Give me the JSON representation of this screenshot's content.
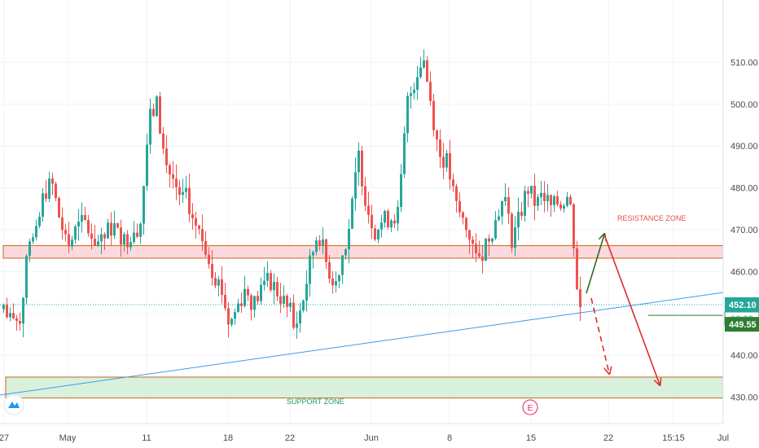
{
  "chart_data": {
    "type": "candlestick",
    "ylim": [
      423,
      520
    ],
    "y_ticks": [
      430,
      440,
      450,
      460,
      470,
      480,
      490,
      500,
      510
    ],
    "y_tick_labels": [
      "430.00",
      "440.00",
      "450.00",
      "460.00",
      "470.00",
      "480.00",
      "490.00",
      "500.00",
      "510.00"
    ],
    "x_tick_labels": [
      "27",
      "May",
      "11",
      "18",
      "22",
      "Jun",
      "8",
      "15",
      "22",
      "15:15",
      "Jul"
    ],
    "grid": true,
    "price_badges": {
      "last_price": "452.10",
      "countdown": "06:08",
      "level": "449.55"
    },
    "zones": [
      {
        "name": "RESISTANCE ZONE",
        "low": 463.2,
        "high": 466.2
      },
      {
        "name": "SUPPORT ZONE",
        "low": 429.8,
        "high": 434.8
      }
    ],
    "current_price_line": 452.1,
    "trendline": {
      "start": 430.5,
      "end": 455.0
    },
    "price_anchors": [
      [
        0,
        451
      ],
      [
        10,
        447
      ],
      [
        20,
        449
      ],
      [
        30,
        464
      ],
      [
        40,
        468
      ],
      [
        50,
        479
      ],
      [
        60,
        481
      ],
      [
        70,
        472
      ],
      [
        80,
        466
      ],
      [
        90,
        470
      ],
      [
        100,
        472
      ],
      [
        110,
        468
      ],
      [
        120,
        466
      ],
      [
        130,
        470
      ],
      [
        140,
        471
      ],
      [
        150,
        467
      ],
      [
        160,
        470
      ],
      [
        170,
        472
      ],
      [
        180,
        496
      ],
      [
        190,
        500
      ],
      [
        200,
        486
      ],
      [
        210,
        482
      ],
      [
        220,
        478
      ],
      [
        230,
        476
      ],
      [
        240,
        470
      ],
      [
        250,
        466
      ],
      [
        260,
        460
      ],
      [
        270,
        456
      ],
      [
        280,
        447
      ],
      [
        290,
        452
      ],
      [
        300,
        456
      ],
      [
        310,
        452
      ],
      [
        320,
        456
      ],
      [
        330,
        458
      ],
      [
        340,
        455
      ],
      [
        350,
        452
      ],
      [
        360,
        446
      ],
      [
        370,
        452
      ],
      [
        380,
        462
      ],
      [
        390,
        470
      ],
      [
        400,
        462
      ],
      [
        410,
        457
      ],
      [
        420,
        464
      ],
      [
        430,
        472
      ],
      [
        440,
        488
      ],
      [
        450,
        476
      ],
      [
        460,
        470
      ],
      [
        470,
        472
      ],
      [
        480,
        473
      ],
      [
        490,
        474
      ],
      [
        500,
        500
      ],
      [
        510,
        506
      ],
      [
        520,
        512
      ],
      [
        530,
        500
      ],
      [
        540,
        488
      ],
      [
        550,
        486
      ],
      [
        560,
        476
      ],
      [
        570,
        472
      ],
      [
        580,
        468
      ],
      [
        590,
        464
      ],
      [
        600,
        468
      ],
      [
        610,
        472
      ],
      [
        620,
        478
      ],
      [
        630,
        468
      ],
      [
        640,
        474
      ],
      [
        650,
        480
      ],
      [
        660,
        476
      ],
      [
        670,
        478
      ],
      [
        680,
        475
      ],
      [
        690,
        477
      ],
      [
        700,
        478
      ],
      [
        705,
        473
      ],
      [
        710,
        458
      ],
      [
        715,
        451
      ]
    ]
  }
}
